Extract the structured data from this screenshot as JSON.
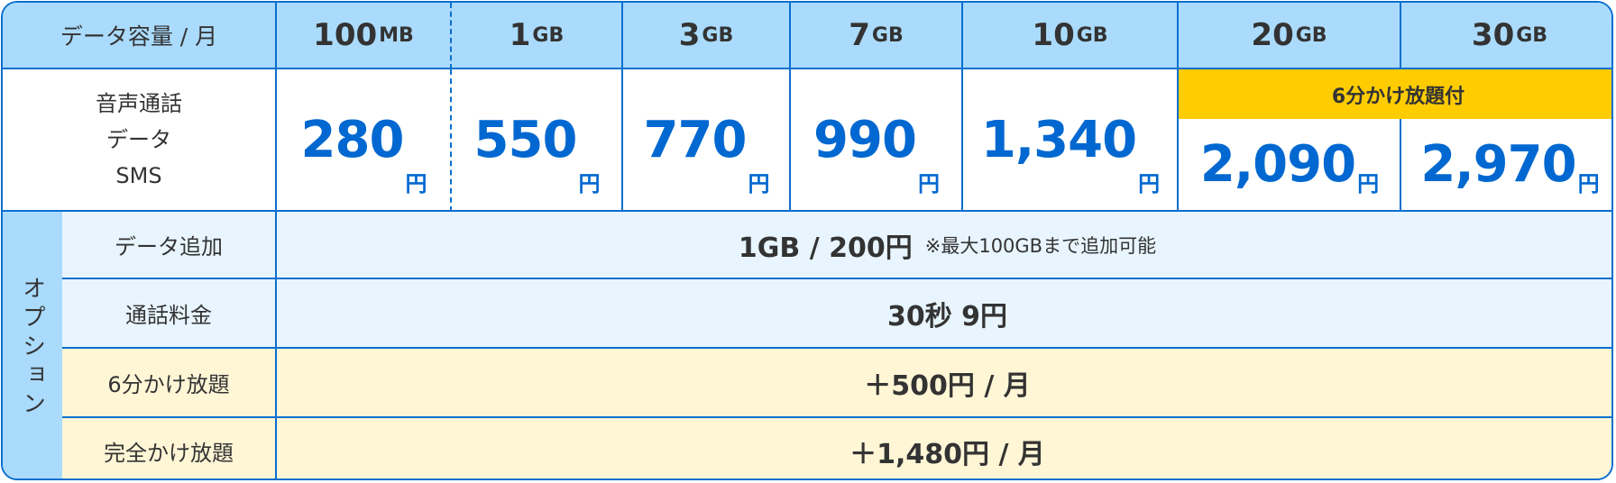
{
  "header": {
    "label": "データ容量 / 月",
    "plans": [
      {
        "num": "100",
        "unit": "MB"
      },
      {
        "num": "1",
        "unit": "GB"
      },
      {
        "num": "3",
        "unit": "GB"
      },
      {
        "num": "7",
        "unit": "GB"
      },
      {
        "num": "10",
        "unit": "GB"
      },
      {
        "num": "20",
        "unit": "GB"
      },
      {
        "num": "30",
        "unit": "GB"
      }
    ]
  },
  "service": {
    "lines": [
      "音声通話",
      "データ",
      "SMS"
    ],
    "badge": "6分かけ放題付",
    "prices": [
      "280",
      "550",
      "770",
      "990",
      "1,340",
      "2,090",
      "2,970"
    ],
    "yen": "円"
  },
  "options": {
    "label": "オプション",
    "rows": [
      {
        "name": "データ追加",
        "value": "1GB / 200円",
        "note": "※最大100GBまで追加可能"
      },
      {
        "name": "通話料金",
        "value": "30秒 9円"
      },
      {
        "name": "6分かけ放題",
        "value": "＋500円 / 月"
      },
      {
        "name": "完全かけ放題",
        "value": "＋1,480円 / 月"
      }
    ]
  },
  "colors": {
    "border": "#0a6fcf",
    "header_bg": "#aadbfd",
    "price": "#0068d0",
    "badge": "#ffcc00",
    "option_blue": "#e8f5ff",
    "option_cream": "#fff6d6"
  }
}
